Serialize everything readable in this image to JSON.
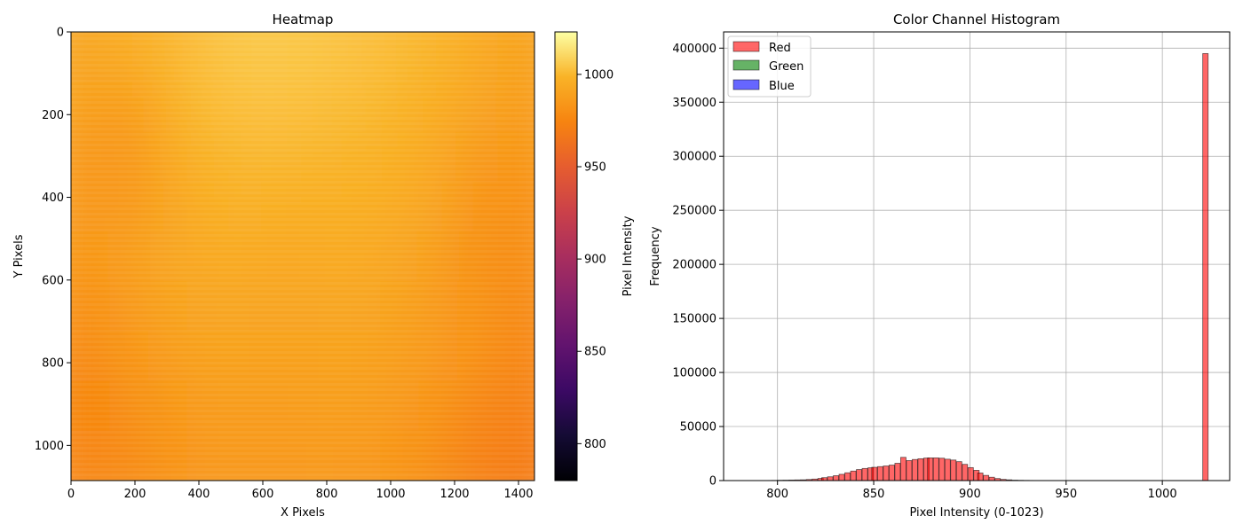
{
  "chart_data": [
    {
      "type": "heatmap",
      "title": "Heatmap",
      "xlabel": "X Pixels",
      "ylabel": "Y Pixels",
      "xlim": [
        0,
        1450
      ],
      "ylim": [
        1085,
        0
      ],
      "x_ticks": [
        0,
        200,
        400,
        600,
        800,
        1000,
        1200,
        1400
      ],
      "y_ticks": [
        0,
        200,
        400,
        600,
        800,
        1000
      ],
      "colormap": "inferno",
      "colorbar": {
        "label": "Pixel Intensity",
        "range": [
          780,
          1023
        ],
        "ticks": [
          800,
          850,
          900,
          950,
          1000
        ]
      },
      "intensity_grid": [
        [
          992,
          995,
          999,
          1003,
          1005,
          1005,
          1004,
          1003,
          1001,
          998,
          994,
          990
        ],
        [
          989,
          986,
          996,
          1001,
          1003,
          1003,
          1002,
          1001,
          998,
          995,
          991,
          987
        ],
        [
          986,
          983,
          993,
          998,
          1000,
          1000,
          999,
          998,
          996,
          993,
          985,
          984
        ],
        [
          986,
          984,
          991,
          996,
          997,
          996,
          996,
          996,
          994,
          991,
          982,
          981
        ],
        [
          984,
          988,
          992,
          994,
          994,
          993,
          994,
          994,
          992,
          988,
          980,
          980
        ],
        [
          981,
          986,
          990,
          992,
          992,
          991,
          992,
          992,
          990,
          986,
          982,
          978
        ],
        [
          978,
          983,
          987,
          990,
          990,
          989,
          990,
          990,
          988,
          985,
          981,
          976
        ],
        [
          975,
          980,
          984,
          987,
          987,
          987,
          988,
          988,
          986,
          982,
          976,
          973
        ],
        [
          976,
          978,
          982,
          985,
          985,
          985,
          986,
          985,
          983,
          979,
          973,
          970
        ]
      ]
    },
    {
      "type": "bar",
      "title": "Color Channel Histogram",
      "xlabel": "Pixel Intensity (0-1023)",
      "ylabel": "Frequency",
      "xlim": [
        772,
        1035
      ],
      "ylim": [
        0,
        415000
      ],
      "x_ticks": [
        800,
        850,
        900,
        950,
        1000
      ],
      "y_ticks": [
        0,
        50000,
        100000,
        150000,
        200000,
        250000,
        300000,
        350000,
        400000
      ],
      "grid": true,
      "legend_position": "top-left",
      "legend": [
        "Red",
        "Green",
        "Blue"
      ],
      "colors": {
        "Red": "#ff0000",
        "Green": "#008000",
        "Blue": "#0000ff"
      },
      "bin_width": 2.8,
      "bins_start": [
        780,
        783,
        786,
        789,
        792,
        795,
        797,
        800,
        803,
        806,
        809,
        812,
        815,
        818,
        821,
        823,
        826,
        829,
        832,
        835,
        838,
        841,
        844,
        847,
        849,
        852,
        855,
        858,
        861,
        864,
        867,
        870,
        873,
        876,
        878,
        881,
        884,
        887,
        890,
        893,
        896,
        899,
        902,
        904,
        907,
        910,
        913,
        916,
        919,
        922,
        925,
        928,
        930,
        933,
        936,
        939,
        942,
        945,
        948,
        951,
        954,
        956,
        959,
        962,
        965,
        968,
        971,
        974,
        977,
        980,
        982,
        1021
      ],
      "red_values": [
        20,
        30,
        40,
        60,
        80,
        100,
        150,
        300,
        400,
        500,
        600,
        700,
        1000,
        1400,
        2000,
        2700,
        3500,
        4500,
        5800,
        7200,
        8800,
        10200,
        11200,
        11800,
        12300,
        12900,
        13500,
        14300,
        16000,
        21500,
        18500,
        19500,
        20200,
        20800,
        21000,
        21000,
        20700,
        19800,
        19000,
        17500,
        15000,
        12000,
        9500,
        7000,
        4800,
        3100,
        1900,
        1100,
        700,
        400,
        250,
        150,
        100,
        80,
        60,
        40,
        30,
        20,
        15,
        10,
        8,
        6,
        5,
        4,
        3,
        3,
        2,
        2,
        1,
        1,
        0,
        395000
      ]
    }
  ]
}
